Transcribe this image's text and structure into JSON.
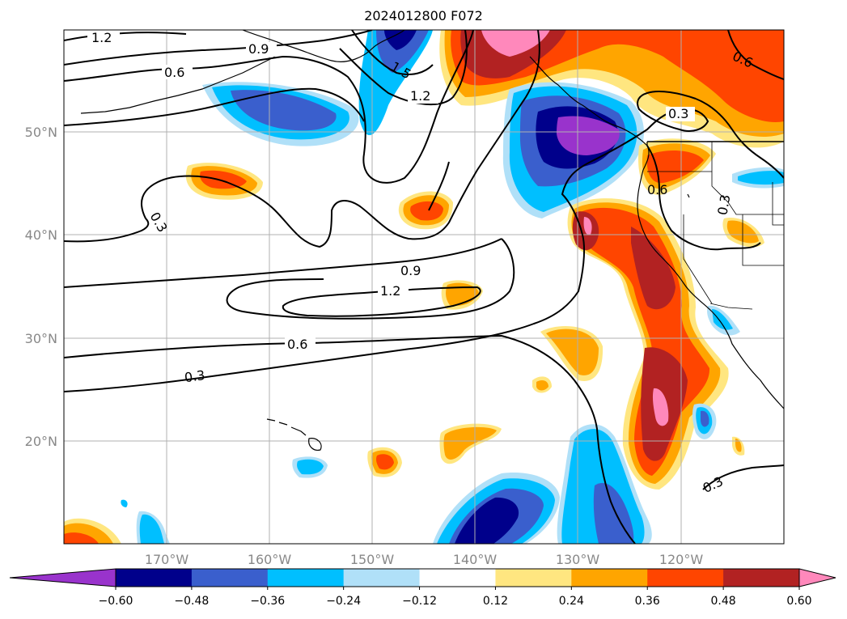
{
  "title": "2024012800 F072",
  "latitude_labels": [
    "50°N",
    "40°N",
    "30°N",
    "20°N"
  ],
  "longitude_labels": [
    "170°W",
    "160°W",
    "150°W",
    "140°W",
    "130°W",
    "120°W"
  ],
  "colorbar": {
    "ticks": [
      "−0.60",
      "−0.48",
      "−0.36",
      "−0.24",
      "−0.12",
      "0.12",
      "0.24",
      "0.36",
      "0.48",
      "0.60"
    ],
    "colors": [
      "#9933cc",
      "#00008b",
      "#3a5fcd",
      "#00bfff",
      "#b0e0f8",
      "#ffffff",
      "#ffe680",
      "#ffa500",
      "#ff4500",
      "#b22222",
      "#ff88bb"
    ]
  },
  "contour_labels": [
    "1.2",
    "0.9",
    "0.6",
    "1.5",
    "1.2",
    "0.3",
    "0.3",
    "0.9",
    "1.2",
    "0.6",
    "0.3",
    "0.6",
    "0.3",
    "0.6",
    "0.3"
  ],
  "colors": {
    "grid": "#b0b0b0",
    "contour": "#000000",
    "tick_label": "#888888"
  }
}
